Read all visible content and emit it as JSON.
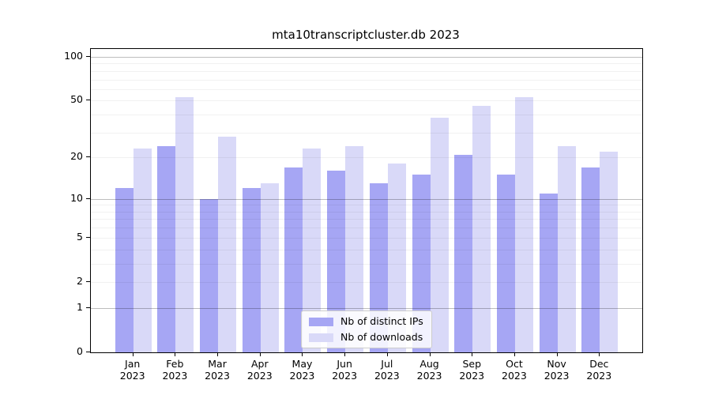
{
  "chart_data": {
    "type": "bar",
    "title": "mta10transcriptcluster.db 2023",
    "yscale": "log1p",
    "ylim": [
      0,
      113
    ],
    "categories": [
      "Jan",
      "Feb",
      "Mar",
      "Apr",
      "May",
      "Jun",
      "Jul",
      "Aug",
      "Sep",
      "Oct",
      "Nov",
      "Dec"
    ],
    "xtick_year": "2023",
    "series": [
      {
        "name": "Nb of distinct IPs",
        "color": "#a6a6f4",
        "values": [
          12,
          24,
          10,
          12,
          17,
          16,
          13,
          15,
          21,
          15,
          11,
          17
        ]
      },
      {
        "name": "Nb of downloads",
        "color": "#d9d9f8",
        "values": [
          23,
          53,
          28,
          13,
          23,
          24,
          18,
          38,
          46,
          53,
          24,
          22
        ]
      }
    ],
    "yticks": [
      {
        "value": 100,
        "label": "100"
      },
      {
        "value": 50,
        "label": "50"
      },
      {
        "value": 20,
        "label": "20"
      },
      {
        "value": 10,
        "label": "10"
      },
      {
        "value": 5,
        "label": "5"
      },
      {
        "value": 2,
        "label": "2"
      },
      {
        "value": 1,
        "label": "1"
      },
      {
        "value": 0,
        "label": "0"
      }
    ],
    "grid": {
      "minor_values": [
        2,
        3,
        4,
        5,
        6,
        7,
        8,
        9,
        20,
        30,
        40,
        50,
        60,
        70,
        80,
        90
      ],
      "major_values": [
        1,
        10,
        100
      ],
      "minor_color": "rgba(0,0,0,0.055)",
      "major_color": "rgba(0,0,0,0.26)"
    },
    "legend_position": "bottom-center"
  }
}
